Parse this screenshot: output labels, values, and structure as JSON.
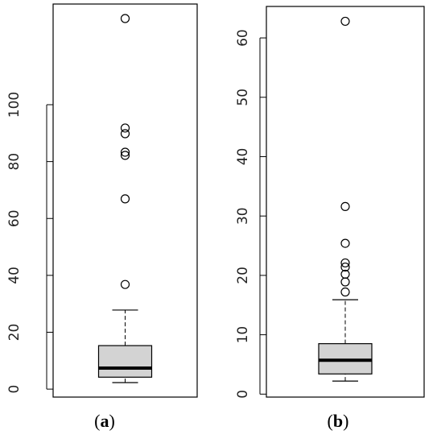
{
  "chart_data": [
    {
      "type": "box",
      "caption": [
        "(",
        "a",
        ")"
      ],
      "color": "#d3d3d3",
      "ylim": [
        -2.8,
        135.4
      ],
      "yticks": [
        0,
        20,
        40,
        60,
        80,
        100
      ],
      "min": 2.3,
      "q1": 4.2,
      "median": 7.4,
      "q3": 15.3,
      "max": 27.8,
      "outliers": [
        130.3,
        91.8,
        89.8,
        83.3,
        82.2,
        66.9,
        36.8
      ]
    },
    {
      "type": "box",
      "caption": [
        "(",
        "b",
        ")"
      ],
      "color": "#d3d3d3",
      "ylim": [
        -0.5,
        65.3
      ],
      "yticks": [
        0,
        10,
        20,
        30,
        40,
        50,
        60
      ],
      "min": 2.2,
      "q1": 3.4,
      "median": 5.7,
      "q3": 8.5,
      "max": 15.9,
      "outliers": [
        62.8,
        31.6,
        25.4,
        22.1,
        21.4,
        20.2,
        18.9,
        17.2
      ]
    }
  ]
}
